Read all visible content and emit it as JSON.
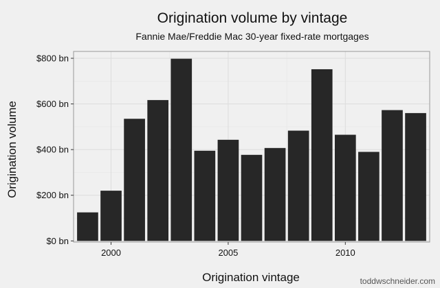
{
  "chart_data": {
    "type": "bar",
    "title": "Origination volume by vintage",
    "subtitle": "Fannie Mae/Freddie Mac 30-year fixed-rate mortgages",
    "xlabel": "Origination vintage",
    "ylabel": "Origination volume",
    "categories": [
      1999,
      2000,
      2001,
      2002,
      2003,
      2004,
      2005,
      2006,
      2007,
      2008,
      2009,
      2010,
      2011,
      2012,
      2013
    ],
    "values": [
      125,
      220,
      535,
      617,
      798,
      395,
      443,
      377,
      407,
      483,
      752,
      465,
      390,
      573,
      560
    ],
    "value_unit": "billion USD",
    "xlim": [
      1998.4,
      2013.6
    ],
    "ylim": [
      -5,
      830
    ],
    "x_ticks": [
      2000,
      2005,
      2010
    ],
    "y_ticks": [
      0,
      200,
      400,
      600,
      800
    ],
    "y_tick_labels": [
      "$0 bn",
      "$200 bn",
      "$400 bn",
      "$600 bn",
      "$800 bn"
    ],
    "grid": true,
    "legend": "none",
    "colors": {
      "bar": "#272727",
      "panel": "#f0f0f0",
      "grid_major": "#dcdcdc",
      "grid_minor": "#e6e6e6",
      "axis": "#999999"
    }
  },
  "credit": "toddwschneider.com"
}
